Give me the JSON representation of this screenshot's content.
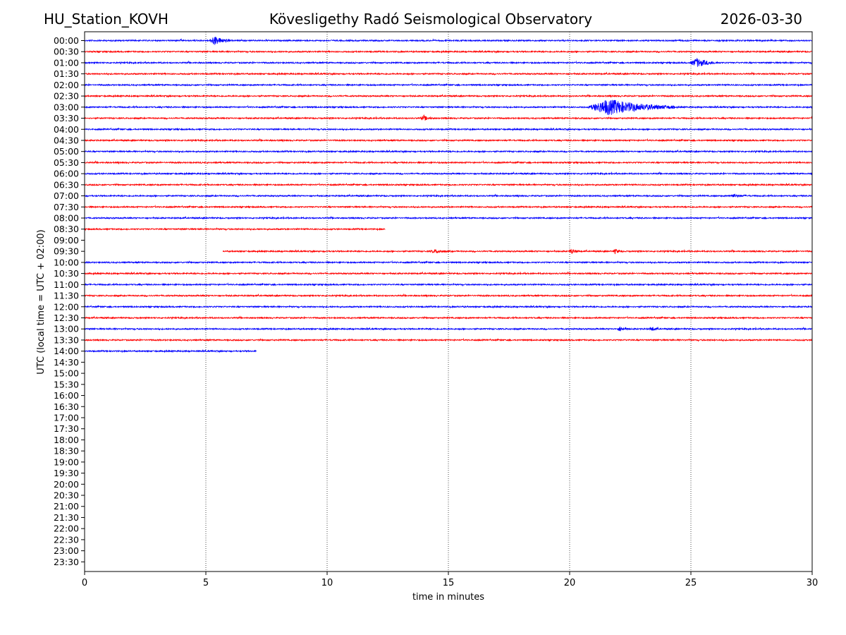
{
  "header": {
    "station": "HU_Station_KOVH",
    "observatory": "Kövesligethy Radó Seismological Observatory",
    "date": "2026-03-30"
  },
  "chart_data": {
    "type": "line",
    "title": "Kövesligethy Radó Seismological Observatory",
    "xlabel": "time in minutes",
    "ylabel": "UTC (local time = UTC + 02:00)",
    "xlim": [
      0,
      30
    ],
    "xticks": [
      0,
      5,
      10,
      15,
      20,
      25,
      30
    ],
    "grid_x": true,
    "row_labels": [
      "00:00",
      "00:30",
      "01:00",
      "01:30",
      "02:00",
      "02:30",
      "03:00",
      "03:30",
      "04:00",
      "04:30",
      "05:00",
      "05:30",
      "06:00",
      "06:30",
      "07:00",
      "07:30",
      "08:00",
      "08:30",
      "09:00",
      "09:30",
      "10:00",
      "10:30",
      "11:00",
      "11:30",
      "12:00",
      "12:30",
      "13:00",
      "13:30",
      "14:00",
      "14:30",
      "15:00",
      "15:30",
      "16:00",
      "16:30",
      "17:00",
      "17:30",
      "18:00",
      "18:30",
      "19:00",
      "19:30",
      "20:00",
      "20:30",
      "21:00",
      "21:30",
      "22:00",
      "22:30",
      "23:00",
      "23:30"
    ],
    "colors": {
      "even_row": "#0000ff",
      "odd_row": "#ff0000"
    },
    "traces": [
      {
        "row": "00:00",
        "start": 0,
        "end": 30,
        "events": [
          {
            "t": 5.4,
            "dur": 0.9,
            "amp": 6
          }
        ]
      },
      {
        "row": "00:30",
        "start": 0,
        "end": 30,
        "events": []
      },
      {
        "row": "01:00",
        "start": 0,
        "end": 30,
        "events": [
          {
            "t": 25.3,
            "dur": 1.2,
            "amp": 6
          }
        ]
      },
      {
        "row": "01:30",
        "start": 0,
        "end": 30,
        "events": []
      },
      {
        "row": "02:00",
        "start": 0,
        "end": 30,
        "events": []
      },
      {
        "row": "02:30",
        "start": 0,
        "end": 30,
        "events": []
      },
      {
        "row": "03:00",
        "start": 0,
        "end": 30,
        "events": [
          {
            "t": 21.8,
            "dur": 3.6,
            "amp": 11
          }
        ]
      },
      {
        "row": "03:30",
        "start": 0,
        "end": 30,
        "events": [
          {
            "t": 14.0,
            "dur": 0.6,
            "amp": 3
          }
        ]
      },
      {
        "row": "04:00",
        "start": 0,
        "end": 30,
        "events": []
      },
      {
        "row": "04:30",
        "start": 0,
        "end": 30,
        "events": []
      },
      {
        "row": "05:00",
        "start": 0,
        "end": 30,
        "events": []
      },
      {
        "row": "05:30",
        "start": 0,
        "end": 30,
        "events": []
      },
      {
        "row": "06:00",
        "start": 0,
        "end": 30,
        "events": []
      },
      {
        "row": "06:30",
        "start": 0,
        "end": 30,
        "events": []
      },
      {
        "row": "07:00",
        "start": 0,
        "end": 30,
        "events": [
          {
            "t": 26.8,
            "dur": 0.8,
            "amp": 2
          }
        ]
      },
      {
        "row": "07:30",
        "start": 0,
        "end": 30,
        "events": []
      },
      {
        "row": "08:00",
        "start": 0,
        "end": 30,
        "events": []
      },
      {
        "row": "08:30",
        "start": 0,
        "end": 12.4,
        "events": []
      },
      {
        "row": "09:30",
        "start": 5.7,
        "end": 30,
        "events": [
          {
            "t": 20.1,
            "dur": 0.5,
            "amp": 3
          },
          {
            "t": 21.9,
            "dur": 0.4,
            "amp": 3
          },
          {
            "t": 14.5,
            "dur": 1.0,
            "amp": 2
          }
        ]
      },
      {
        "row": "10:00",
        "start": 0,
        "end": 30,
        "events": []
      },
      {
        "row": "10:30",
        "start": 0,
        "end": 30,
        "events": []
      },
      {
        "row": "11:00",
        "start": 0,
        "end": 30,
        "events": []
      },
      {
        "row": "11:30",
        "start": 0,
        "end": 30,
        "events": []
      },
      {
        "row": "12:00",
        "start": 0,
        "end": 30,
        "events": []
      },
      {
        "row": "12:30",
        "start": 0,
        "end": 30,
        "events": []
      },
      {
        "row": "13:00",
        "start": 0,
        "end": 30,
        "events": [
          {
            "t": 22.1,
            "dur": 0.5,
            "amp": 3
          },
          {
            "t": 23.4,
            "dur": 0.4,
            "amp": 3
          }
        ]
      },
      {
        "row": "13:30",
        "start": 0,
        "end": 30,
        "events": []
      },
      {
        "row": "14:00",
        "start": 0,
        "end": 7.1,
        "events": []
      }
    ]
  }
}
